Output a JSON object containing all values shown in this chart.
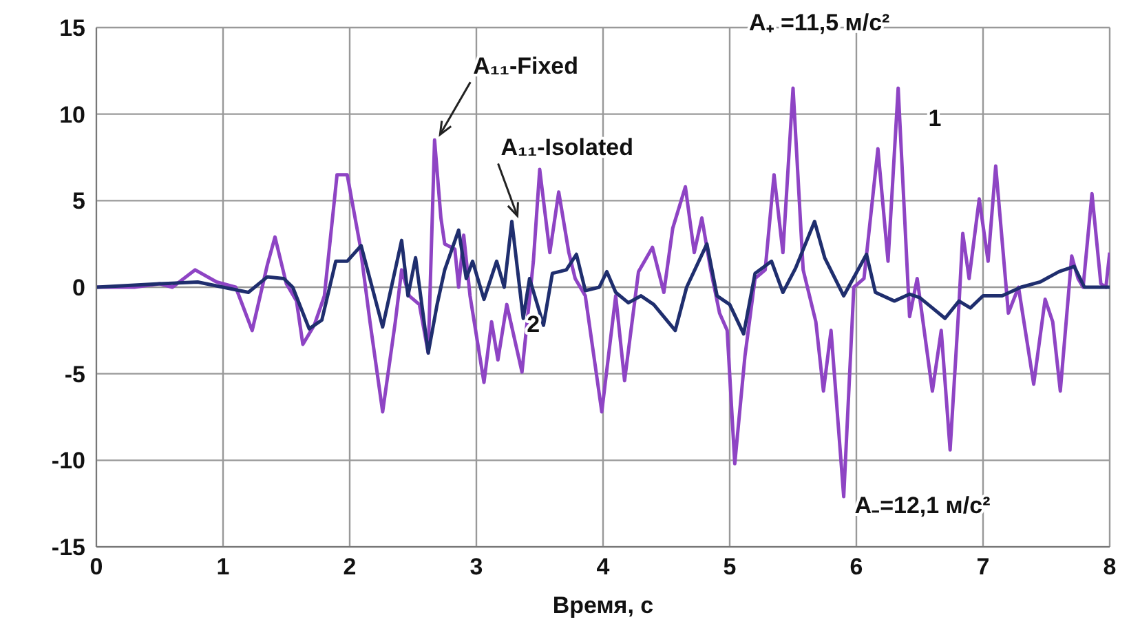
{
  "chart_data": {
    "type": "line",
    "xlabel": "Время, с",
    "xlim": [
      0,
      8
    ],
    "xticks": [
      0,
      1,
      2,
      3,
      4,
      5,
      6,
      7,
      8
    ],
    "ylim": [
      -15,
      15
    ],
    "yticks": [
      -15,
      -10,
      -5,
      0,
      5,
      10,
      15
    ],
    "grid": true,
    "marker": "none",
    "line_style": "solid",
    "series": [
      {
        "color": "#8e44c4",
        "x": [
          0,
          0.3,
          0.5,
          0.6,
          0.78,
          0.95,
          1.1,
          1.23,
          1.35,
          1.41,
          1.5,
          1.58,
          1.63,
          1.72,
          1.8,
          1.9,
          1.98,
          2.08,
          2.16,
          2.26,
          2.36,
          2.41,
          2.47,
          2.55,
          2.62,
          2.67,
          2.72,
          2.75,
          2.83,
          2.86,
          2.9,
          2.95,
          3.06,
          3.12,
          3.17,
          3.24,
          3.36,
          3.45,
          3.5,
          3.58,
          3.65,
          3.73,
          3.78,
          3.86,
          3.99,
          4.1,
          4.17,
          4.28,
          4.39,
          4.48,
          4.55,
          4.65,
          4.72,
          4.78,
          4.85,
          4.92,
          4.98,
          5.04,
          5.12,
          5.2,
          5.28,
          5.35,
          5.42,
          5.5,
          5.58,
          5.68,
          5.74,
          5.8,
          5.9,
          5.98,
          6.06,
          6.17,
          6.25,
          6.33,
          6.42,
          6.48,
          6.6,
          6.67,
          6.74,
          6.81,
          6.84,
          6.89,
          6.97,
          7.04,
          7.1,
          7.2,
          7.28,
          7.4,
          7.49,
          7.55,
          7.61,
          7.7,
          7.75,
          7.79,
          7.86,
          7.93,
          7.97,
          8.0
        ],
        "values": [
          0,
          0,
          0.2,
          0,
          1,
          0.3,
          0,
          -2.5,
          1.3,
          2.9,
          0.2,
          -0.8,
          -3.3,
          -2.2,
          -0.5,
          6.5,
          6.5,
          2.5,
          -2,
          -7.2,
          -2,
          1,
          -0.5,
          -1,
          -3.8,
          8.5,
          4,
          2.5,
          2.2,
          0,
          3,
          -0.5,
          -5.5,
          -2,
          -4.2,
          -1,
          -4.9,
          1.5,
          6.8,
          2,
          5.5,
          2,
          0.5,
          -0.5,
          -7.2,
          -0.5,
          -5.4,
          0.9,
          2.3,
          -0.3,
          3.4,
          5.8,
          2,
          4,
          1,
          -1.5,
          -2.5,
          -10.2,
          -4,
          0.5,
          1,
          6.5,
          2,
          11.5,
          1,
          -2,
          -6,
          -2.5,
          -12.1,
          0,
          0.5,
          8,
          1.5,
          11.5,
          -1.7,
          0.5,
          -6,
          -2.5,
          -9.4,
          -1,
          3.1,
          0.5,
          5.1,
          1.5,
          7,
          -1.5,
          0,
          -5.6,
          -0.7,
          -2,
          -6,
          1.8,
          0.5,
          0,
          5.4,
          0.2,
          0,
          2
        ]
      },
      {
        "color": "#1f2e6e",
        "x": [
          0,
          0.5,
          0.8,
          1.0,
          1.2,
          1.35,
          1.48,
          1.55,
          1.68,
          1.78,
          1.89,
          1.98,
          2.09,
          2.26,
          2.41,
          2.46,
          2.52,
          2.62,
          2.69,
          2.75,
          2.86,
          2.92,
          2.97,
          3.06,
          3.16,
          3.22,
          3.28,
          3.37,
          3.42,
          3.53,
          3.6,
          3.71,
          3.79,
          3.86,
          3.97,
          4.03,
          4.1,
          4.2,
          4.3,
          4.4,
          4.57,
          4.66,
          4.82,
          4.9,
          5.0,
          5.11,
          5.2,
          5.33,
          5.42,
          5.52,
          5.67,
          5.75,
          5.9,
          6.08,
          6.15,
          6.3,
          6.42,
          6.5,
          6.6,
          6.7,
          6.81,
          6.9,
          7.0,
          7.15,
          7.3,
          7.45,
          7.6,
          7.72,
          7.8,
          8.0
        ],
        "values": [
          0,
          0.2,
          0.3,
          0,
          -0.3,
          0.6,
          0.5,
          0,
          -2.4,
          -1.9,
          1.5,
          1.5,
          2.4,
          -2.3,
          2.7,
          -0.5,
          1.7,
          -3.8,
          -1,
          1,
          3.3,
          0.5,
          1.5,
          -0.7,
          1.5,
          0,
          3.8,
          -1.8,
          0.5,
          -2.2,
          0.8,
          1,
          1.9,
          -0.2,
          0,
          0.9,
          -0.3,
          -0.9,
          -0.5,
          -1,
          -2.5,
          0,
          2.5,
          -0.5,
          -1,
          -2.7,
          0.8,
          1.5,
          -0.3,
          1.1,
          3.8,
          1.7,
          -0.5,
          1.9,
          -0.3,
          -0.8,
          -0.4,
          -0.6,
          -1.2,
          -1.8,
          -0.8,
          -1.2,
          -0.5,
          -0.5,
          0,
          0.3,
          0.9,
          1.2,
          0,
          0
        ]
      }
    ],
    "annotations": [
      {
        "text": "A₁₁-Fixed",
        "x": 2.67,
        "y": 8.5
      },
      {
        "text": "A₁₁-Isolated",
        "x": 3.28,
        "y": 3.8
      },
      {
        "text": "A₊ =11,5 м/с²",
        "x": 5.5,
        "y": 11.5
      },
      "1",
      "2",
      {
        "text": "A₋=12,1 м/с²",
        "x": 5.9,
        "y": -12.1
      }
    ]
  }
}
